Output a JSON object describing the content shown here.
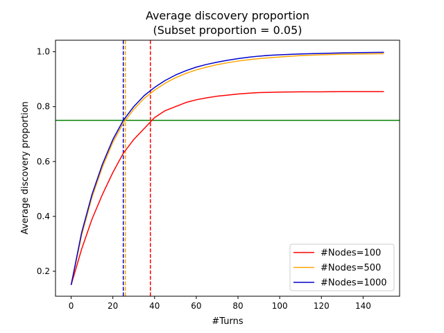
{
  "chart_data": {
    "type": "line",
    "title": "Average discovery proportion",
    "subtitle": "(Subset proportion = 0.05)",
    "xlabel": "#Turns",
    "ylabel": "Average discovery proportion",
    "xlim": [
      -7.5,
      157.5
    ],
    "ylim": [
      0.109,
      1.042
    ],
    "xticks": [
      0,
      20,
      40,
      60,
      80,
      100,
      120,
      140
    ],
    "yticks": [
      0.2,
      0.4,
      0.6,
      0.8,
      1.0
    ],
    "xtick_labels": [
      "0",
      "20",
      "40",
      "60",
      "80",
      "100",
      "120",
      "140"
    ],
    "ytick_labels": [
      "0.2",
      "0.4",
      "0.6",
      "0.8",
      "1.0"
    ],
    "grid": false,
    "legend_position": "lower-right",
    "series": [
      {
        "name": "#Nodes=100",
        "color": "#ff0000",
        "x": [
          0,
          5,
          10,
          15,
          20,
          25,
          30,
          35,
          40,
          45,
          50,
          55,
          60,
          65,
          70,
          75,
          80,
          85,
          90,
          95,
          100,
          110,
          120,
          130,
          140,
          150
        ],
        "y": [
          0.15,
          0.28,
          0.39,
          0.48,
          0.56,
          0.63,
          0.68,
          0.72,
          0.76,
          0.785,
          0.8,
          0.815,
          0.825,
          0.832,
          0.838,
          0.842,
          0.846,
          0.849,
          0.851,
          0.852,
          0.853,
          0.854,
          0.854,
          0.855,
          0.855,
          0.855
        ]
      },
      {
        "name": "#Nodes=500",
        "color": "#ffa500",
        "x": [
          0,
          5,
          10,
          15,
          20,
          25,
          30,
          35,
          40,
          45,
          50,
          55,
          60,
          65,
          70,
          75,
          80,
          85,
          90,
          95,
          100,
          110,
          120,
          130,
          140,
          150
        ],
        "y": [
          0.15,
          0.33,
          0.47,
          0.58,
          0.67,
          0.74,
          0.79,
          0.83,
          0.86,
          0.885,
          0.905,
          0.921,
          0.934,
          0.944,
          0.953,
          0.96,
          0.966,
          0.971,
          0.975,
          0.978,
          0.981,
          0.986,
          0.989,
          0.991,
          0.992,
          0.993
        ]
      },
      {
        "name": "#Nodes=1000",
        "color": "#0000cd",
        "x": [
          0,
          5,
          10,
          15,
          20,
          25,
          30,
          35,
          40,
          45,
          50,
          55,
          60,
          65,
          70,
          75,
          80,
          85,
          90,
          95,
          100,
          110,
          120,
          130,
          140,
          150
        ],
        "y": [
          0.15,
          0.34,
          0.48,
          0.59,
          0.68,
          0.75,
          0.8,
          0.84,
          0.87,
          0.895,
          0.915,
          0.931,
          0.944,
          0.954,
          0.962,
          0.969,
          0.975,
          0.98,
          0.984,
          0.987,
          0.989,
          0.992,
          0.994,
          0.996,
          0.997,
          0.998
        ]
      }
    ],
    "reference_lines": [
      {
        "orientation": "horizontal",
        "value": 0.75,
        "color": "#008000",
        "style": "solid"
      },
      {
        "orientation": "vertical",
        "value": 25,
        "color": "#0000cd",
        "style": "dashed"
      },
      {
        "orientation": "vertical",
        "value": 26,
        "color": "#ffa500",
        "style": "dashed"
      },
      {
        "orientation": "vertical",
        "value": 38,
        "color": "#ff0000",
        "style": "dashed"
      }
    ]
  }
}
